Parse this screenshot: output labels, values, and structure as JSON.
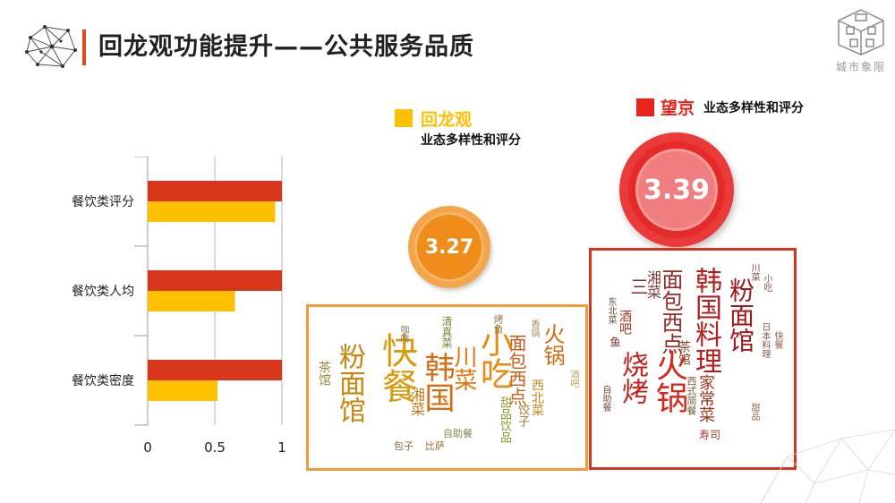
{
  "header": {
    "title": "回龙观功能提升——公共服务品质",
    "brand": "城市象限",
    "accent": "#e04a1a"
  },
  "legend": {
    "a": {
      "name": "回龙观",
      "subtitle": "业态多样性和评分",
      "color": "#ffc000"
    },
    "b": {
      "name": "望京",
      "subtitle": "业态多样性和评分",
      "color": "#e8231b"
    }
  },
  "badges": {
    "a": "3.27",
    "b": "3.39"
  },
  "chart_data": {
    "type": "bar",
    "orientation": "horizontal",
    "categories": [
      "餐饮类评分",
      "餐饮类人均",
      "餐饮类密度"
    ],
    "series": [
      {
        "name": "望京",
        "color": "#d7361a",
        "values": [
          1,
          1,
          1
        ]
      },
      {
        "name": "回龙观",
        "color": "#ffc000",
        "values": [
          0.95,
          0.65,
          0.52
        ]
      }
    ],
    "xticks": [
      "0",
      "0.5",
      "1"
    ],
    "xlim": [
      0,
      1
    ]
  },
  "wordcloud_a": {
    "words": [
      "粉面馆",
      "快餐",
      "面包西点",
      "川菜",
      "火锅",
      "小吃",
      "韩国",
      "茶馆",
      "湘菜",
      "甜品饮品",
      "西北菜",
      "饺子",
      "清真菜",
      "烤鱼",
      "包子",
      "比萨",
      "自助餐",
      "酒吧",
      "香锅",
      "咖啡"
    ]
  },
  "wordcloud_b": {
    "words": [
      "韩国料理",
      "烧烤",
      "火锅",
      "粉面馆",
      "面包西点",
      "湘菜",
      "三",
      "家常菜",
      "西式简餐",
      "茶馆",
      "寿司",
      "酒吧",
      "日本料理",
      "东北菜",
      "快餐",
      "自助餐",
      "鱼",
      "川菜",
      "小吃",
      "甜品"
    ]
  }
}
